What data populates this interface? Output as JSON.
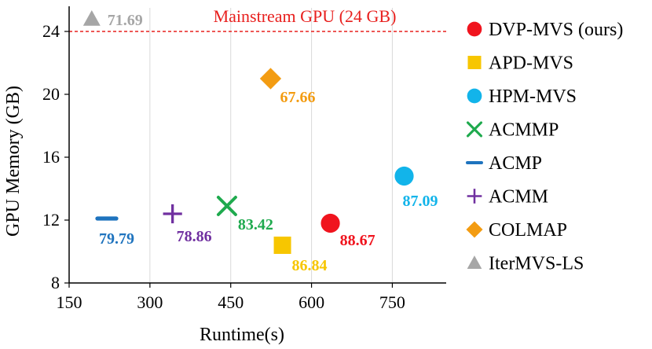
{
  "chart_data": {
    "type": "scatter",
    "xlabel": "Runtime(s)",
    "ylabel": "GPU Memory (GB)",
    "xlim": [
      150,
      850
    ],
    "ylim": [
      8,
      25.5
    ],
    "x_ticks": [
      "150",
      "300",
      "450",
      "600",
      "750"
    ],
    "x_tick_values": [
      150,
      300,
      450,
      600,
      750
    ],
    "y_ticks": [
      "8",
      "12",
      "16",
      "20",
      "24"
    ],
    "y_tick_values": [
      8,
      12,
      16,
      20,
      24
    ],
    "grid": "vertical",
    "reference_line": {
      "y": 24,
      "label": "Mainstream GPU (24 GB)",
      "color": "#e8201e",
      "style": "dashed"
    },
    "legend_position": "right",
    "series": [
      {
        "name": "DVP-MVS (ours)",
        "marker": "circle",
        "color": "#f0141e",
        "x": 635,
        "y": 11.8,
        "label": "88.67"
      },
      {
        "name": "APD-MVS",
        "marker": "square",
        "color": "#f7c600",
        "x": 546,
        "y": 10.4,
        "label": "86.84"
      },
      {
        "name": "HPM-MVS",
        "marker": "circle",
        "color": "#12b4ea",
        "x": 772,
        "y": 14.8,
        "label": "87.09"
      },
      {
        "name": "ACMMP",
        "marker": "x",
        "color": "#1faa4e",
        "x": 443,
        "y": 12.9,
        "label": "83.42"
      },
      {
        "name": "ACMP",
        "marker": "dash",
        "color": "#1e73be",
        "x": 220,
        "y": 12.1,
        "label": "79.79"
      },
      {
        "name": "ACMM",
        "marker": "plus",
        "color": "#7030a0",
        "x": 342,
        "y": 12.4,
        "label": "78.86"
      },
      {
        "name": "COLMAP",
        "marker": "diamond",
        "color": "#f39c12",
        "x": 524,
        "y": 21.0,
        "label": "67.66"
      },
      {
        "name": "IterMVS-LS",
        "marker": "triangle",
        "color": "#a6a6a6",
        "x": 192,
        "y": 24.8,
        "label": "71.69"
      }
    ]
  }
}
